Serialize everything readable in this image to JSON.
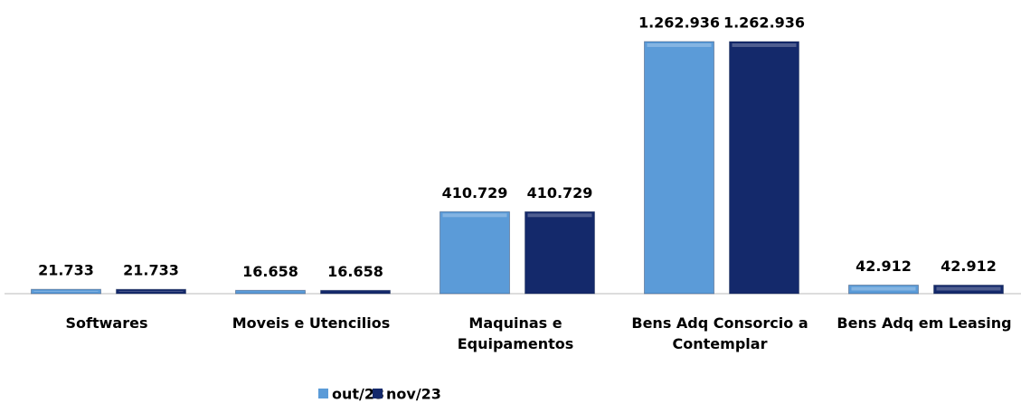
{
  "chart_data": {
    "type": "bar",
    "categories": [
      "Softwares",
      "Moveis e Utencilios",
      "Maquinas e Equipamentos",
      "Bens Adq Consorcio a Contemplar",
      "Bens Adq em Leasing"
    ],
    "series": [
      {
        "name": "out/23",
        "color": "#5b9bd8",
        "values": [
          21733,
          16658,
          410729,
          1262936,
          42912
        ],
        "value_labels": [
          "21.733",
          "16.658",
          "410.729",
          "1.262.936",
          "42.912"
        ]
      },
      {
        "name": "nov/23",
        "color": "#14296b",
        "values": [
          21733,
          16658,
          410729,
          1262936,
          42912
        ],
        "value_labels": [
          "21.733",
          "16.658",
          "410.729",
          "1.262.936",
          "42.912"
        ]
      }
    ],
    "legend": "bottom"
  }
}
